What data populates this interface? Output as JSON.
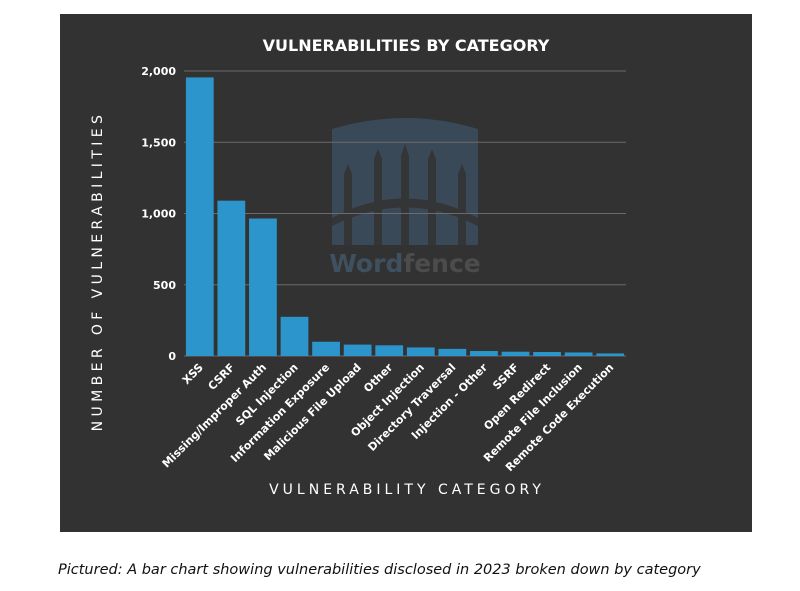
{
  "caption": "Pictured: A bar chart showing vulnerabilities disclosed in 2023 broken down by category",
  "watermark": {
    "part1": "Word",
    "part2": "fence"
  },
  "colors": {
    "panel": "#323232",
    "bar": "#2b95cc",
    "grid": "#6b6b6b",
    "text": "#ffffff",
    "watermark": "#3b4b5b"
  },
  "chart_data": {
    "type": "bar",
    "title": "VULNERABILITIES BY CATEGORY",
    "xlabel": "VULNERABILITY CATEGORY",
    "ylabel": "NUMBER OF VULNERABILITIES",
    "ylim": [
      0,
      2000
    ],
    "yticks": [
      0,
      500,
      1000,
      1500,
      2000
    ],
    "ytick_labels": [
      "0",
      "500",
      "1,000",
      "1,500",
      "2,000"
    ],
    "grid": true,
    "categories": [
      "XSS",
      "CSRF",
      "Missing/Improper Auth",
      "SQL Injection",
      "Information Exposure",
      "Malicious File Upload",
      "Other",
      "Object Injection",
      "Directory Traversal",
      "Injection - Other",
      "SSRF",
      "Open Redirect",
      "Remote File Inclusion",
      "Remote Code Execution"
    ],
    "values": [
      1955,
      1090,
      965,
      275,
      100,
      80,
      75,
      60,
      50,
      35,
      30,
      28,
      25,
      18
    ]
  }
}
